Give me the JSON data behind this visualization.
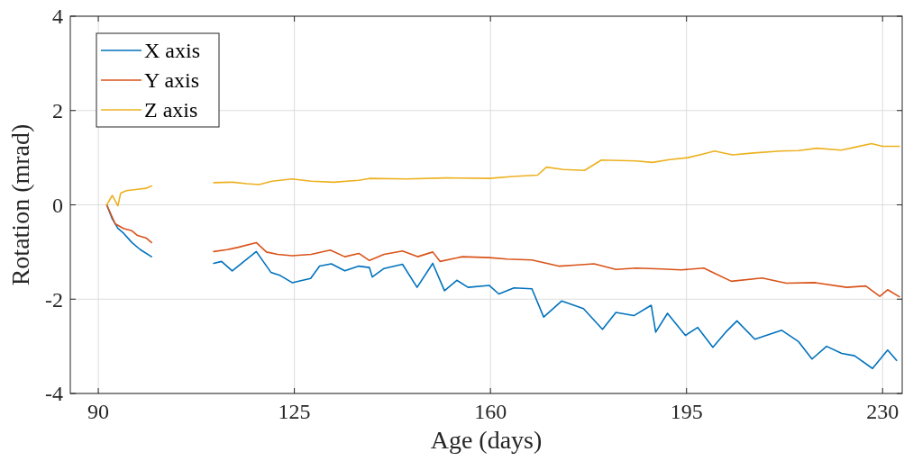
{
  "chart_data": {
    "type": "line",
    "xlabel": "Age (days)",
    "ylabel": "Rotation (mrad)",
    "xlim": [
      85,
      233.5
    ],
    "ylim": [
      -4,
      4
    ],
    "xticks": [
      90,
      125,
      160,
      195,
      230
    ],
    "yticks": [
      -4,
      -2,
      0,
      2,
      4
    ],
    "grid": true,
    "legend": "top left",
    "line_style": "solid",
    "marker": "none",
    "series": [
      {
        "name": "X axis",
        "color": "#0072bd",
        "x": [
          91.5,
          92.5,
          93.5,
          94.5,
          96,
          97.5,
          99.5,
          null,
          110.6,
          112,
          113.9,
          116,
          118.2,
          120.8,
          122.5,
          124.6,
          127.9,
          129.5,
          131.6,
          134,
          136.5,
          138.4,
          138.9,
          141,
          144.3,
          146.9,
          149.7,
          151.8,
          154,
          156,
          159.8,
          161.5,
          164.2,
          167.4,
          169.5,
          172.7,
          176.6,
          180,
          182.4,
          185.6,
          188.7,
          189.5,
          191.6,
          194.8,
          197,
          199.7,
          202,
          204,
          207.2,
          212,
          215,
          217.4,
          220,
          222.7,
          225,
          228.2,
          230.9,
          232.5
        ],
        "values": [
          0,
          -0.3,
          -0.5,
          -0.6,
          -0.8,
          -0.95,
          -1.1,
          null,
          -1.24,
          -1.2,
          -1.4,
          -1.2,
          -0.99,
          -1.43,
          -1.5,
          -1.65,
          -1.56,
          -1.3,
          -1.25,
          -1.4,
          -1.3,
          -1.33,
          -1.53,
          -1.35,
          -1.26,
          -1.75,
          -1.24,
          -1.82,
          -1.6,
          -1.75,
          -1.71,
          -1.89,
          -1.76,
          -1.78,
          -2.38,
          -2.04,
          -2.2,
          -2.64,
          -2.28,
          -2.35,
          -2.13,
          -2.7,
          -2.3,
          -2.77,
          -2.6,
          -3.02,
          -2.7,
          -2.46,
          -2.85,
          -2.66,
          -2.9,
          -3.27,
          -3.0,
          -3.15,
          -3.2,
          -3.47,
          -3.08,
          -3.3
        ]
      },
      {
        "name": "Y axis",
        "color": "#d95319",
        "x": [
          91.5,
          93,
          94.5,
          96,
          97,
          98.5,
          99.5,
          null,
          110.6,
          113,
          115,
          118.2,
          120,
          122,
          124.6,
          128,
          131.4,
          134,
          136.5,
          138.4,
          141,
          144.3,
          147,
          149.7,
          151,
          155,
          159.8,
          163,
          167.4,
          172.2,
          175,
          178.5,
          182.4,
          186,
          190.6,
          194,
          198.1,
          200,
          203,
          208.5,
          212.8,
          218,
          223.6,
          227,
          229.5,
          230.9,
          233
        ],
        "values": [
          0,
          -0.4,
          -0.5,
          -0.55,
          -0.65,
          -0.7,
          -0.8,
          null,
          -0.99,
          -0.95,
          -0.9,
          -0.8,
          -1.0,
          -1.05,
          -1.08,
          -1.05,
          -0.96,
          -1.1,
          -1.03,
          -1.18,
          -1.05,
          -0.98,
          -1.1,
          -1.0,
          -1.2,
          -1.1,
          -1.12,
          -1.15,
          -1.17,
          -1.3,
          -1.28,
          -1.25,
          -1.37,
          -1.34,
          -1.36,
          -1.38,
          -1.34,
          -1.45,
          -1.62,
          -1.55,
          -1.66,
          -1.65,
          -1.75,
          -1.72,
          -1.94,
          -1.8,
          -1.95
        ]
      },
      {
        "name": "Z axis",
        "color": "#edb120",
        "x": [
          91.5,
          92.5,
          93.5,
          94,
          95,
          97,
          98.5,
          99.5,
          null,
          110.6,
          114,
          116.5,
          118.7,
          121,
          124.6,
          128,
          132,
          136.5,
          138.4,
          145,
          152,
          159.8,
          164,
          168.4,
          170,
          173,
          176.8,
          179.8,
          186,
          188.9,
          192,
          195.2,
          198,
          200,
          203.2,
          207,
          211.8,
          215,
          218.3,
          222.6,
          225,
          228,
          230,
          233
        ],
        "values": [
          0,
          0.2,
          -0.02,
          0.25,
          0.3,
          0.33,
          0.35,
          0.4,
          null,
          0.47,
          0.48,
          0.45,
          0.43,
          0.5,
          0.55,
          0.5,
          0.48,
          0.52,
          0.56,
          0.55,
          0.57,
          0.56,
          0.6,
          0.63,
          0.8,
          0.75,
          0.73,
          0.95,
          0.93,
          0.9,
          0.96,
          1.0,
          1.08,
          1.14,
          1.06,
          1.1,
          1.14,
          1.15,
          1.2,
          1.16,
          1.22,
          1.3,
          1.24,
          1.24
        ]
      }
    ]
  }
}
